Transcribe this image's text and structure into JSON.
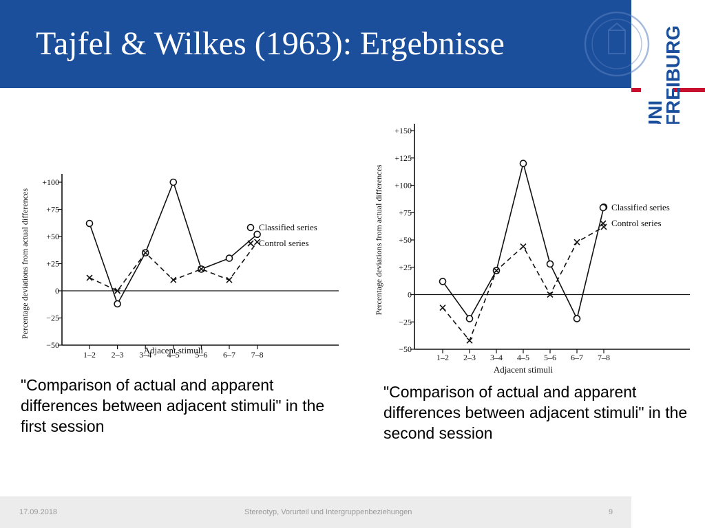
{
  "slide": {
    "title": "Tajfel & Wilkes (1963): Ergebnisse",
    "brand_color": "#1b4f9c",
    "accent_color": "#c8102e"
  },
  "logo": {
    "line1": "UNI",
    "line2": "FREIBURG",
    "seal_icon": "university-seal-icon"
  },
  "captions": {
    "first": "\"Comparison of actual and apparent differences between adjacent stimuli\" in the first session",
    "second": "\"Comparison of actual and apparent differences between adjacent stimuli\" in the second session"
  },
  "footer": {
    "date": "17.09.2018",
    "topic": "Stereotyp, Vorurteil und Intergruppenbeziehungen",
    "page": "9"
  },
  "chart_data": [
    {
      "type": "line",
      "xlabel": "Adjacent stimuli",
      "ylabel": "Percentage deviations from actual differences",
      "categories": [
        "1–2",
        "2–3",
        "3–4",
        "4–5",
        "5–6",
        "6–7",
        "7–8"
      ],
      "yticks": [
        "+100",
        "+75",
        "+50",
        "+25",
        "0",
        "−25",
        "−50"
      ],
      "ylim": [
        -50,
        100
      ],
      "series": [
        {
          "name": "Classified series",
          "marker": "circle",
          "style": "solid",
          "values": [
            62,
            -12,
            35,
            100,
            20,
            30,
            52
          ]
        },
        {
          "name": "Control series",
          "marker": "cross",
          "style": "dashed",
          "values": [
            12,
            0,
            35,
            10,
            20,
            10,
            45
          ]
        }
      ]
    },
    {
      "type": "line",
      "xlabel": "Adjacent stimuli",
      "ylabel": "Percentage deviations from actual differences",
      "categories": [
        "1–2",
        "2–3",
        "3–4",
        "4–5",
        "5–6",
        "6–7",
        "7–8"
      ],
      "yticks": [
        "+150",
        "+125",
        "+100",
        "+75",
        "+50",
        "+25",
        "0",
        "−25",
        "−50"
      ],
      "ylim": [
        -50,
        150
      ],
      "series": [
        {
          "name": "Classified series",
          "marker": "circle",
          "style": "solid",
          "values": [
            12,
            -22,
            22,
            120,
            28,
            -22,
            80
          ]
        },
        {
          "name": "Control series",
          "marker": "cross",
          "style": "dashed",
          "values": [
            -12,
            -42,
            22,
            44,
            0,
            48,
            62
          ]
        }
      ]
    }
  ]
}
